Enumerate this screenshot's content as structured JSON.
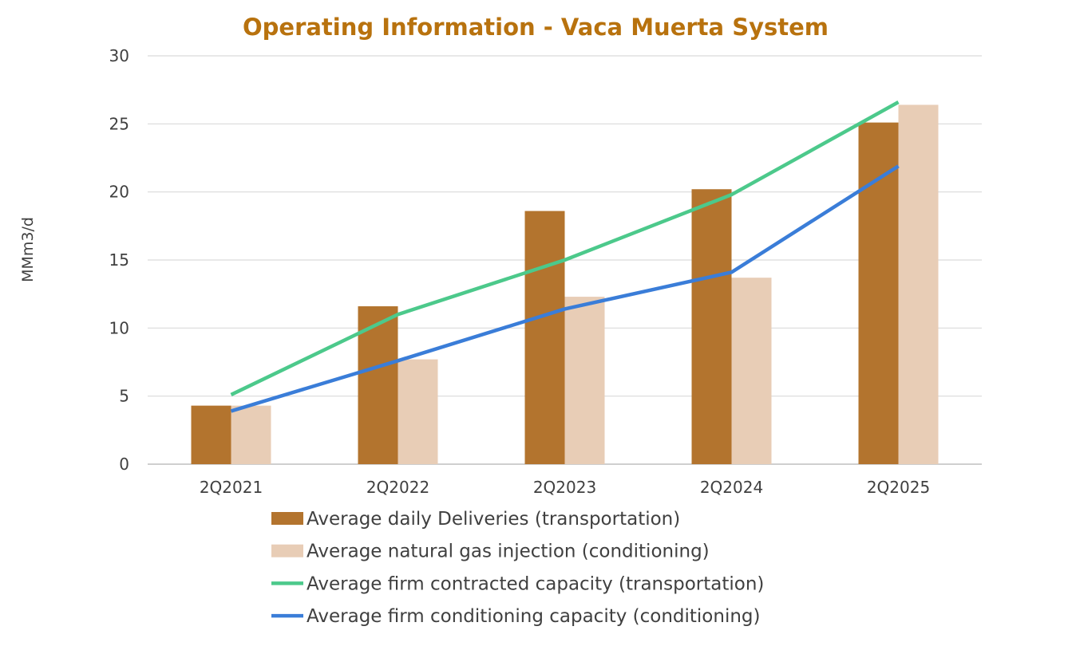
{
  "chart_data": {
    "type": "bar",
    "title": "Operating Information - Vaca Muerta System",
    "ylabel": "MMm3/d",
    "xlabel": "",
    "ylim": [
      0,
      30
    ],
    "yticks": [
      0,
      5,
      10,
      15,
      20,
      25,
      30
    ],
    "grid": true,
    "legend_position": "bottom",
    "categories": [
      "2Q2021",
      "2Q2022",
      "2Q2023",
      "2Q2024",
      "2Q2025"
    ],
    "series": [
      {
        "name": "Average daily Deliveries (transportation)",
        "kind": "bar",
        "color": "#B3742E",
        "values": [
          4.3,
          11.6,
          18.6,
          20.2,
          25.1
        ]
      },
      {
        "name": "Average natural gas injection (conditioning)",
        "kind": "bar",
        "color": "#E8CDB6",
        "values": [
          4.3,
          7.7,
          12.3,
          13.7,
          26.4
        ]
      },
      {
        "name": "Average firm contracted capacity (transportation)",
        "kind": "line",
        "color": "#4CC98B",
        "values": [
          5.1,
          11.0,
          15.0,
          19.8,
          26.6
        ]
      },
      {
        "name": "Average firm conditioning capacity (conditioning)",
        "kind": "line",
        "color": "#3A7DD8",
        "values": [
          3.9,
          7.6,
          11.4,
          14.1,
          21.9
        ]
      }
    ],
    "colors": {
      "title": "#B8720E",
      "grid": "#D9D9D9",
      "axis": "#BFBFBF"
    }
  }
}
